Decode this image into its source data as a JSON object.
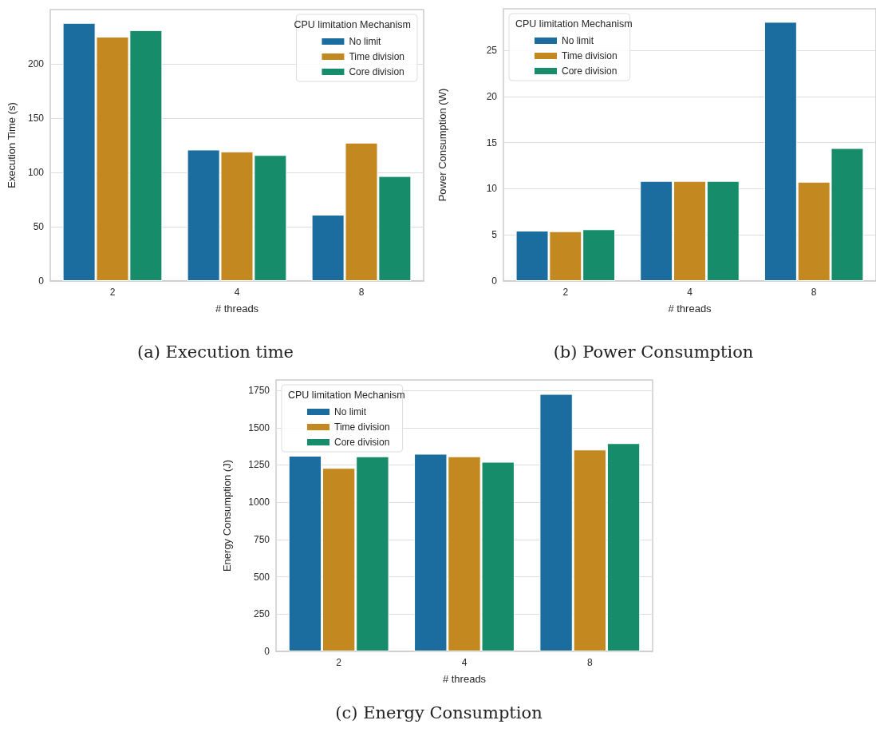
{
  "chart_data": [
    {
      "type": "bar",
      "title": "(a) Execution time",
      "xlabel": "# threads",
      "ylabel": "Execution Time (s)",
      "legend_title": "CPU limitation Mechanism",
      "categories": [
        "2",
        "4",
        "8"
      ],
      "series": [
        {
          "name": "No limit",
          "color": "#1a6d9e",
          "values": [
            237.7,
            121,
            61
          ]
        },
        {
          "name": "Time division",
          "color": "#c38820",
          "values": [
            225,
            119.3,
            127.4
          ]
        },
        {
          "name": "Core division",
          "color": "#178c6a",
          "values": [
            231,
            116,
            96.6
          ]
        }
      ],
      "ylim": [
        0,
        250
      ],
      "yticks": [
        0,
        50,
        100,
        150,
        200
      ],
      "grid": "y",
      "legend": "top right"
    },
    {
      "type": "bar",
      "title": "(b) Power Consumption",
      "xlabel": "# threads",
      "ylabel": "Power Consumption (W)",
      "legend_title": "CPU limitation Mechanism",
      "categories": [
        "2",
        "4",
        "8"
      ],
      "series": [
        {
          "name": "No limit",
          "color": "#1a6d9e",
          "values": [
            5.45,
            10.84,
            28.08
          ]
        },
        {
          "name": "Time division",
          "color": "#c38820",
          "values": [
            5.39,
            10.84,
            10.75
          ]
        },
        {
          "name": "Core division",
          "color": "#178c6a",
          "values": [
            5.6,
            10.84,
            14.4
          ]
        }
      ],
      "ylim": [
        0,
        29.5
      ],
      "yticks": [
        0,
        5,
        10,
        15,
        20,
        25
      ],
      "grid": "y",
      "legend": "top left"
    },
    {
      "type": "bar",
      "title": "(c) Energy Consumption",
      "xlabel": "# threads",
      "ylabel": "Energy Consumption (J)",
      "legend_title": "CPU limitation Mechanism",
      "categories": [
        "2",
        "4",
        "8"
      ],
      "series": [
        {
          "name": "No limit",
          "color": "#1a6d9e",
          "values": [
            1312,
            1325,
            1726
          ]
        },
        {
          "name": "Time division",
          "color": "#c38820",
          "values": [
            1230,
            1308,
            1353
          ]
        },
        {
          "name": "Core division",
          "color": "#178c6a",
          "values": [
            1308,
            1271,
            1396
          ]
        }
      ],
      "ylim": [
        0,
        1820
      ],
      "yticks": [
        0,
        250,
        500,
        750,
        1000,
        1250,
        1500,
        1750
      ],
      "grid": "y",
      "legend": "top left"
    }
  ]
}
